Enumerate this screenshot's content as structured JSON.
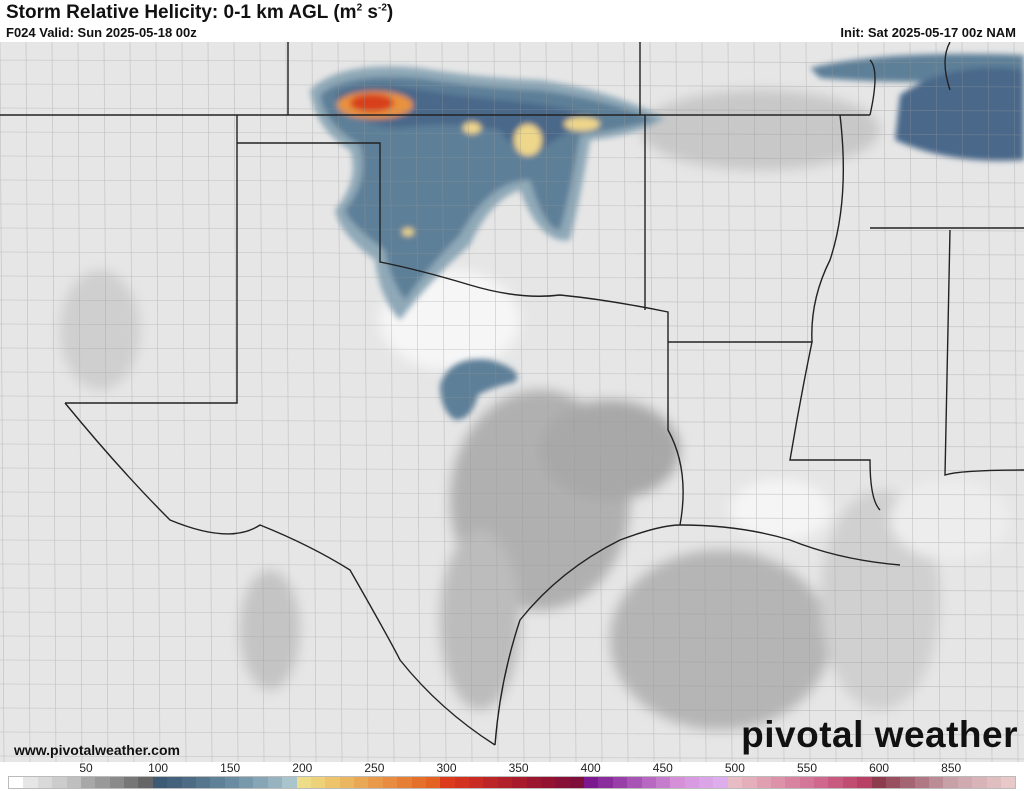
{
  "header": {
    "title": "Storm Relative Helicity: 0-1 km AGL",
    "units_base": "(m",
    "units_exp1": "2",
    "units_mid": " s",
    "units_exp2": "-2",
    "units_end": ")",
    "valid": "F024 Valid: Sun 2025-05-18 00z",
    "init": "Init: Sat 2025-05-17 00z NAM"
  },
  "footer": {
    "website": "www.pivotalweather.com",
    "brand": "pivotal weather"
  },
  "colorbar": {
    "labels": [
      "50",
      "100",
      "150",
      "200",
      "250",
      "300",
      "350",
      "400",
      "450",
      "500",
      "550",
      "600",
      "850"
    ],
    "colors": [
      "#ffffff",
      "#e6e6e6",
      "#d9d9d9",
      "#cccccc",
      "#bfbfbf",
      "#a8a8a8",
      "#999999",
      "#8a8a8a",
      "#777777",
      "#666666",
      "#3c5a74",
      "#44627c",
      "#4d6b85",
      "#56768e",
      "#5f8198",
      "#6a8ca2",
      "#7898ab",
      "#86a5b5",
      "#97b3bf",
      "#a9c4cc",
      "#eedd88",
      "#eed27a",
      "#edc46c",
      "#ebb660",
      "#e9a855",
      "#e89a4a",
      "#e78c40",
      "#e67e36",
      "#e5702c",
      "#e46222",
      "#dc3a1c",
      "#d3321f",
      "#c82c22",
      "#bd2626",
      "#b22029",
      "#a81b2c",
      "#9d162f",
      "#931232",
      "#881036",
      "#7e0e3a",
      "#7b1890",
      "#8a2c9c",
      "#9940a8",
      "#a854b4",
      "#b768c0",
      "#c67ccc",
      "#d590d8",
      "#d89ae0",
      "#dba4e6",
      "#deaeec",
      "#e8bcc4",
      "#e4aebb",
      "#e0a0b2",
      "#dc92a9",
      "#d884a0",
      "#d47697",
      "#d0688e",
      "#c85a80",
      "#c04c72",
      "#b84064",
      "#8c3c4c",
      "#985060",
      "#a46472",
      "#b07884",
      "#bc8c96",
      "#c8a0a8",
      "#d0aab0",
      "#d8b4b8",
      "#e0bec0",
      "#e8c8c8"
    ]
  },
  "map": {
    "background": "#e6e6e6",
    "srh_colors": {
      "light_blue": "#8fa9b8",
      "mid_blue": "#5d7f98",
      "dark_blue": "#48688a",
      "yellow": "#eed68a",
      "orange": "#e8923e",
      "red": "#d8401e"
    }
  }
}
